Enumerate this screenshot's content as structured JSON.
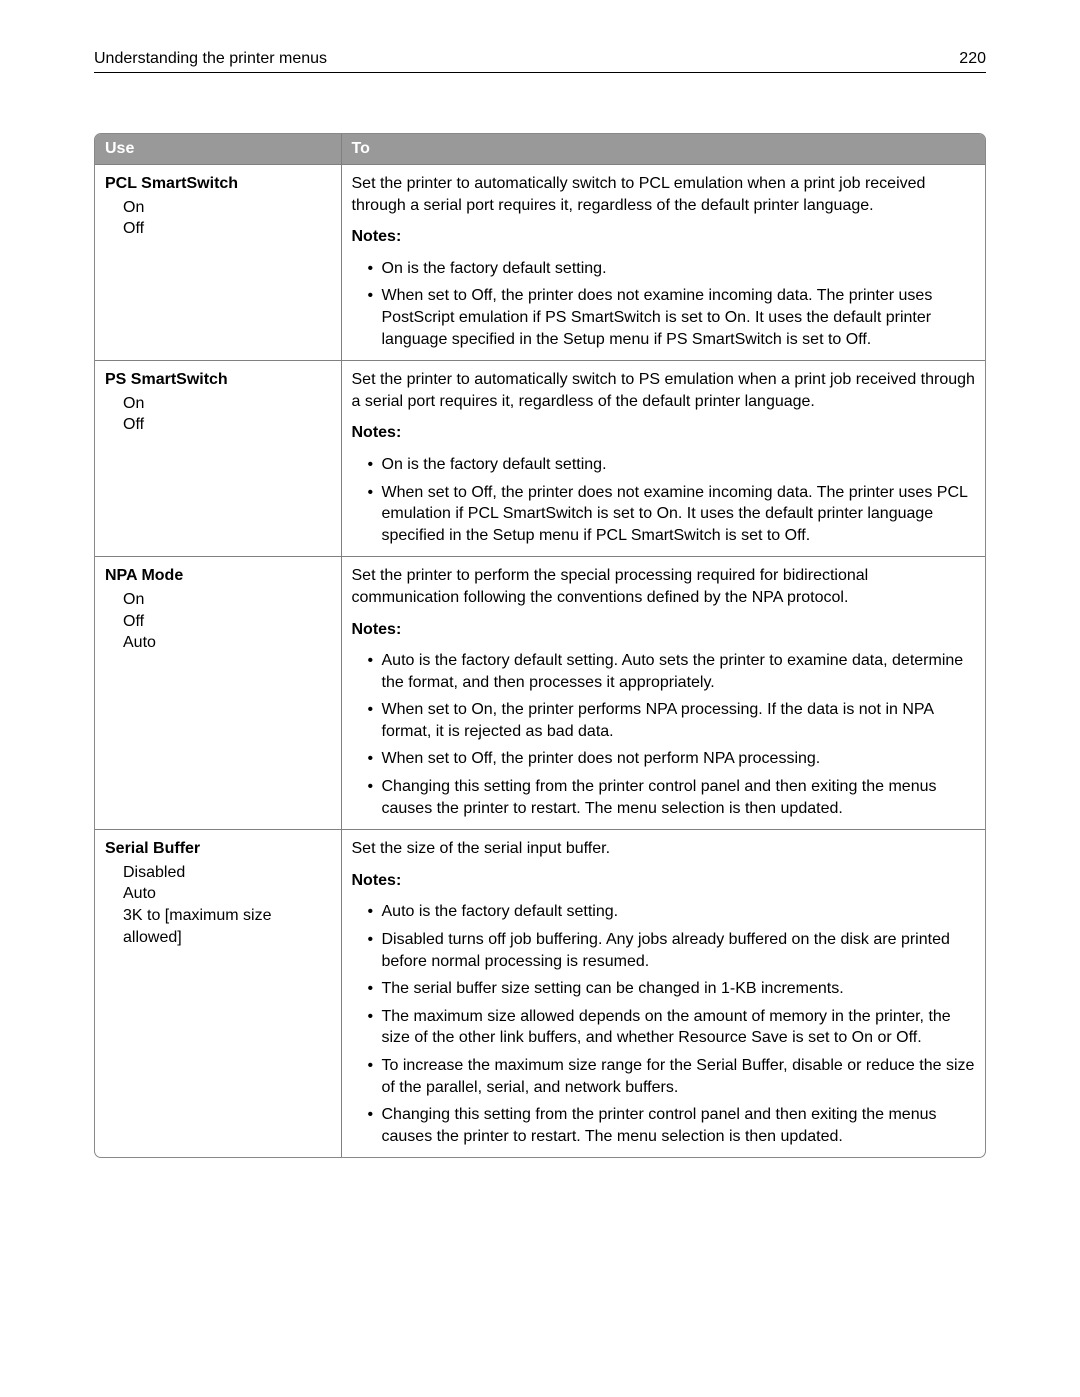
{
  "header": {
    "title": "Understanding the printer menus",
    "page": "220"
  },
  "table": {
    "columns": {
      "use": "Use",
      "to": "To"
    },
    "notesLabel": "Notes:",
    "rows": [
      {
        "setting": "PCL SmartSwitch",
        "options": [
          "On",
          "Off"
        ],
        "description": "Set the printer to automatically switch to PCL emulation when a print job received through a serial port requires it, regardless of the default printer language.",
        "notes": [
          "On is the factory default setting.",
          "When set to Off, the printer does not examine incoming data. The printer uses PostScript emulation if PS SmartSwitch is set to On. It uses the default printer language specified in the Setup menu if PS SmartSwitch is set to Off."
        ]
      },
      {
        "setting": "PS SmartSwitch",
        "options": [
          "On",
          "Off"
        ],
        "description": "Set the printer to automatically switch to PS emulation when a print job received through a serial port requires it, regardless of the default printer language.",
        "notes": [
          "On is the factory default setting.",
          "When set to Off, the printer does not examine incoming data. The printer uses PCL emulation if PCL SmartSwitch is set to On. It uses the default printer language specified in the Setup menu if PCL SmartSwitch is set to Off."
        ]
      },
      {
        "setting": "NPA Mode",
        "options": [
          "On",
          "Off",
          "Auto"
        ],
        "description": "Set the printer to perform the special processing required for bidirectional communication following the conventions defined by the NPA protocol.",
        "notes": [
          "Auto is the factory default setting. Auto sets the printer to examine data, determine the format, and then processes it appropriately.",
          "When set to On, the printer performs NPA processing. If the data is not in NPA format, it is rejected as bad data.",
          "When set to Off, the printer does not perform NPA processing.",
          "Changing this setting from the printer control panel and then exiting the menus causes the printer to restart. The menu selection is then updated."
        ]
      },
      {
        "setting": "Serial Buffer",
        "options": [
          "Disabled",
          "Auto",
          "3K to [maximum size allowed]"
        ],
        "description": "Set the size of the serial input buffer.",
        "notes": [
          "Auto is the factory default setting.",
          "Disabled turns off job buffering. Any jobs already buffered on the disk are printed before normal processing is resumed.",
          "The serial buffer size setting can be changed in 1-KB increments.",
          "The maximum size allowed depends on the amount of memory in the printer, the size of the other link buffers, and whether Resource Save is set to On or Off.",
          "To increase the maximum size range for the Serial Buffer, disable or reduce the size of the parallel, serial, and network buffers.",
          "Changing this setting from the printer control panel and then exiting the menus causes the printer to restart. The menu selection is then updated."
        ]
      }
    ]
  }
}
